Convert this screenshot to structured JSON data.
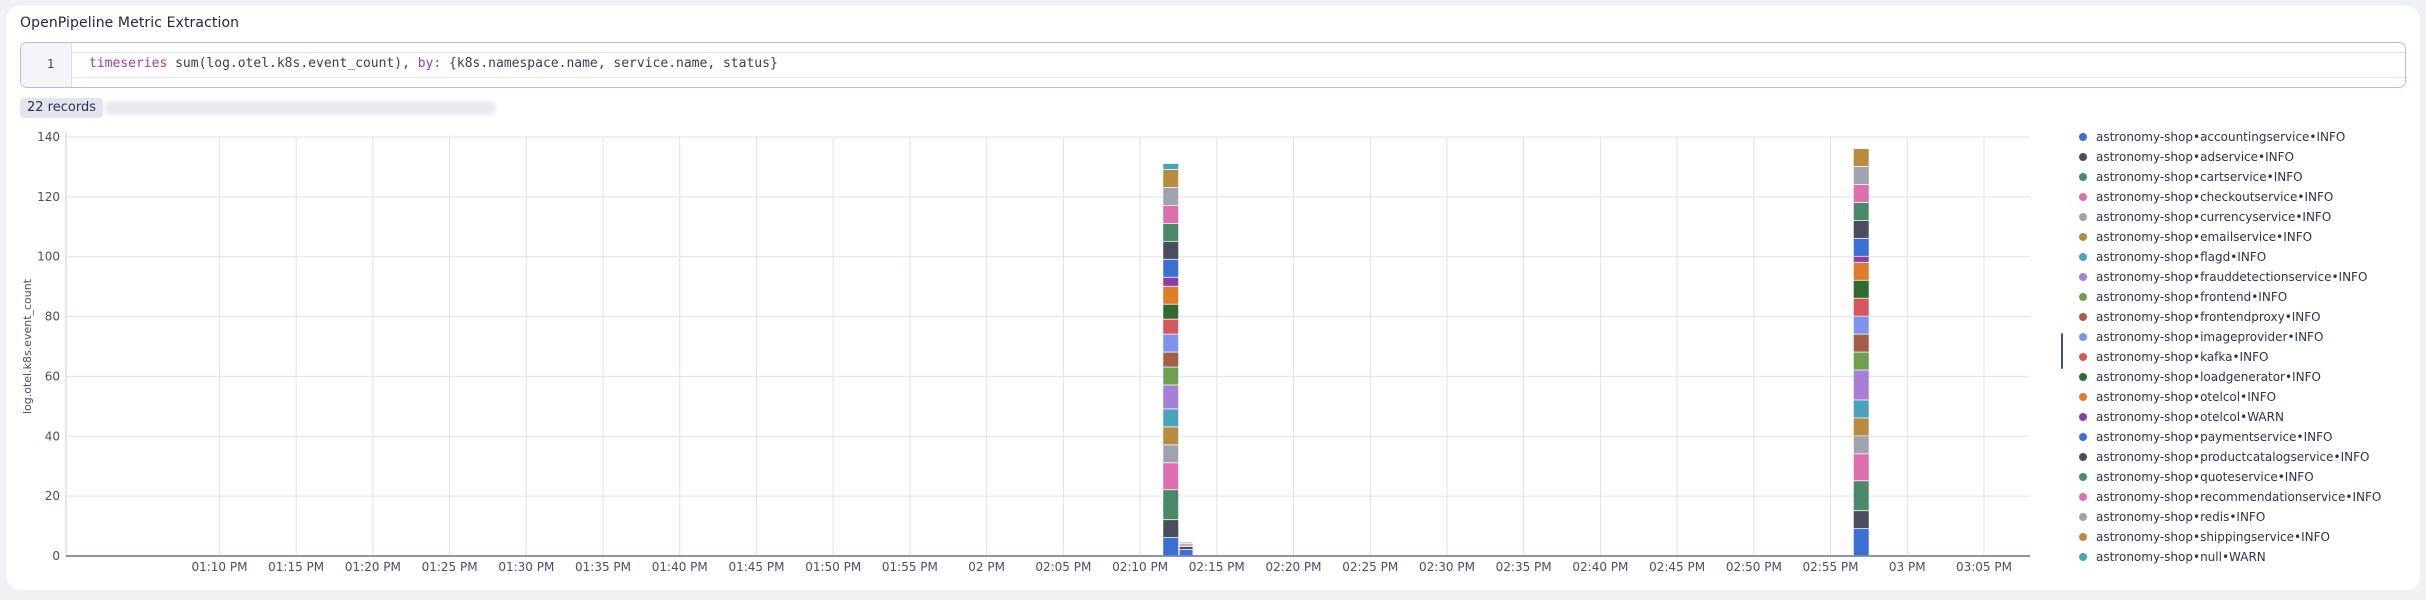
{
  "panel": {
    "title": "OpenPipeline Metric Extraction",
    "line_number": "1",
    "query_keyword": "timeseries",
    "query_func": " sum(log.otel.k8s.event_count), ",
    "query_by": "by:",
    "query_rest": " {k8s.namespace.name, service.name, status}",
    "records_badge": "22 records"
  },
  "colors": [
    "#3a6fd4",
    "#4a4d5f",
    "#4a8a6a",
    "#dc6fae",
    "#a0a2ad",
    "#b78c3f",
    "#4aa3bd",
    "#a77fd4",
    "#6fa04f",
    "#a35f48",
    "#7f93ee",
    "#d45760",
    "#2f6b2f",
    "#de7c2b",
    "#8a3fa8"
  ],
  "chart_data": {
    "type": "bar",
    "stacked": true,
    "ylabel": "log.otel.k8s.event_count",
    "ylim": [
      0,
      140
    ],
    "yticks": [
      0,
      20,
      40,
      60,
      80,
      100,
      120,
      140
    ],
    "xticks": [
      "01:10 PM",
      "01:15 PM",
      "01:20 PM",
      "01:25 PM",
      "01:30 PM",
      "01:35 PM",
      "01:40 PM",
      "01:45 PM",
      "01:50 PM",
      "01:55 PM",
      "02 PM",
      "02:05 PM",
      "02:10 PM",
      "02:15 PM",
      "02:20 PM",
      "02:25 PM",
      "02:30 PM",
      "02:35 PM",
      "02:40 PM",
      "02:45 PM",
      "02:50 PM",
      "02:55 PM",
      "03 PM",
      "03:05 PM"
    ],
    "grid": true,
    "legend_position": "right",
    "series_names": [
      "astronomy-shop•accountingservice•INFO",
      "astronomy-shop•adservice•INFO",
      "astronomy-shop•cartservice•INFO",
      "astronomy-shop•checkoutservice•INFO",
      "astronomy-shop•currencyservice•INFO",
      "astronomy-shop•emailservice•INFO",
      "astronomy-shop•flagd•INFO",
      "astronomy-shop•frauddetectionservice•INFO",
      "astronomy-shop•frontend•INFO",
      "astronomy-shop•frontendproxy•INFO",
      "astronomy-shop•imageprovider•INFO",
      "astronomy-shop•kafka•INFO",
      "astronomy-shop•loadgenerator•INFO",
      "astronomy-shop•otelcol•INFO",
      "astronomy-shop•otelcol•WARN",
      "astronomy-shop•paymentservice•INFO",
      "astronomy-shop•productcatalogservice•INFO",
      "astronomy-shop•quoteservice•INFO",
      "astronomy-shop•recommendationservice•INFO",
      "astronomy-shop•redis•INFO",
      "astronomy-shop•shippingservice•INFO",
      "astronomy-shop•null•WARN"
    ],
    "stacks": [
      {
        "x": "02:12 PM",
        "segments": [
          6,
          6,
          10,
          9,
          6,
          6,
          6,
          8,
          6,
          5,
          6,
          5,
          5,
          6,
          3,
          6,
          6,
          6,
          6,
          6,
          6,
          2
        ]
      },
      {
        "x": "02:13 PM",
        "segments": [
          2,
          1,
          0.5,
          0.5,
          0.5
        ]
      },
      {
        "x": "02:57 PM",
        "segments": [
          9,
          6,
          10,
          9,
          6,
          6,
          6,
          10,
          6,
          6,
          6,
          6,
          6,
          6,
          2,
          6,
          6,
          6,
          6,
          6,
          6
        ]
      }
    ]
  }
}
